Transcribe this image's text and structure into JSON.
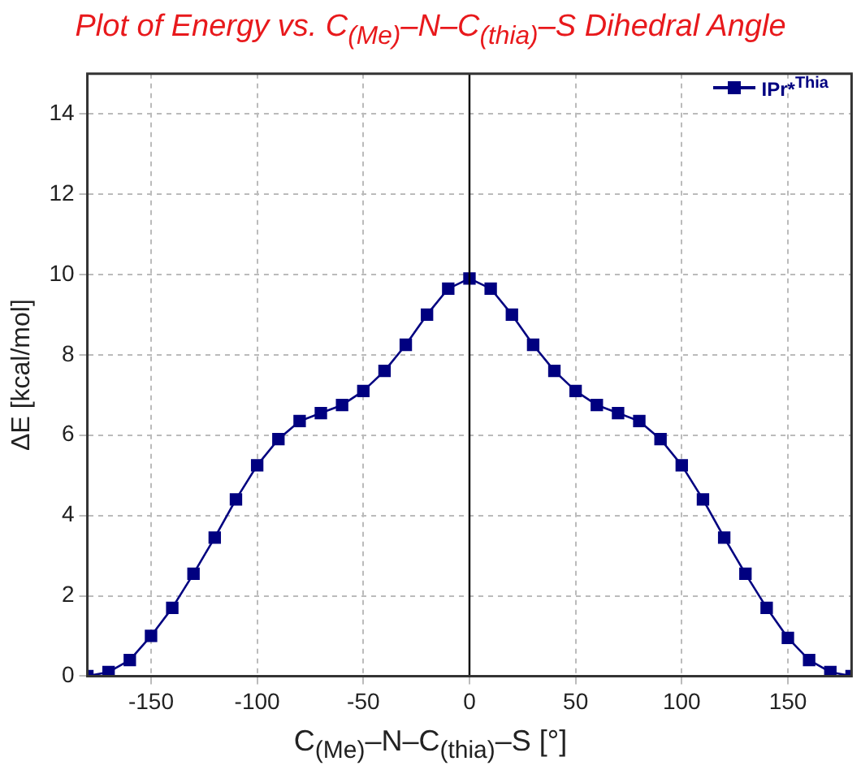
{
  "chart_data": {
    "type": "line",
    "title": "Plot of Energy vs. C$_{(Me)}$–N–C$_{(thia)}$–S Dihedral Angle",
    "xlabel": "C$_{(Me)}$–N–C$_{(thia)}$–S [°]",
    "ylabel": "ΔE [kcal/mol]",
    "x": [
      -180,
      -170,
      -160,
      -150,
      -140,
      -130,
      -120,
      -110,
      -100,
      -90,
      -80,
      -70,
      -60,
      -50,
      -40,
      -30,
      -20,
      -10,
      0,
      10,
      20,
      30,
      40,
      50,
      60,
      70,
      80,
      90,
      100,
      110,
      120,
      130,
      140,
      150,
      160,
      170,
      180
    ],
    "series": [
      {
        "name": "IPr*$^{Thia}$",
        "color": "#000080",
        "values": [
          0,
          0.1,
          0.4,
          1.0,
          1.7,
          2.55,
          3.45,
          4.4,
          5.25,
          5.9,
          6.35,
          6.55,
          6.75,
          7.1,
          7.6,
          8.25,
          9.0,
          9.65,
          9.9,
          9.65,
          9.0,
          8.25,
          7.6,
          7.1,
          6.75,
          6.55,
          6.35,
          5.9,
          5.25,
          4.4,
          3.45,
          2.55,
          1.7,
          0.95,
          0.4,
          0.1,
          0
        ]
      }
    ],
    "xlim": [
      -180,
      180
    ],
    "xticks": [
      -150,
      -100,
      -50,
      0,
      50,
      100,
      150
    ],
    "ylim": [
      0,
      15
    ],
    "yticks": [
      0,
      2,
      4,
      6,
      8,
      10,
      12,
      14
    ],
    "ref_lines": [
      {
        "axis": "x",
        "value": 0,
        "color": "#000000"
      }
    ],
    "grid": true,
    "legend": "top right",
    "marker": "square",
    "line_style": "solid"
  }
}
